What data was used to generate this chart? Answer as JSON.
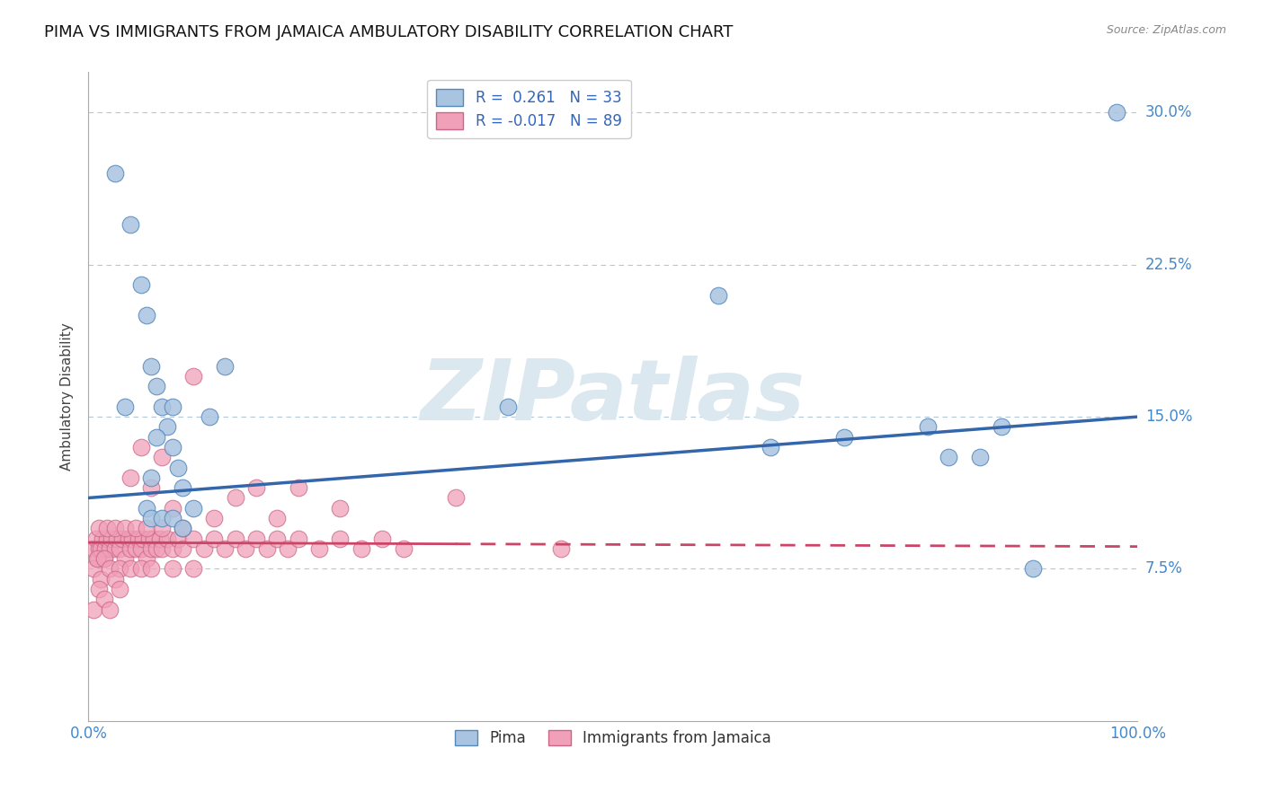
{
  "title": "PIMA VS IMMIGRANTS FROM JAMAICA AMBULATORY DISABILITY CORRELATION CHART",
  "source_text": "Source: ZipAtlas.com",
  "ylabel": "Ambulatory Disability",
  "xlim": [
    0.0,
    1.0
  ],
  "ylim": [
    0.0,
    0.32
  ],
  "yticks": [
    0.075,
    0.15,
    0.225,
    0.3
  ],
  "ytick_labels": [
    "7.5%",
    "15.0%",
    "22.5%",
    "30.0%"
  ],
  "pima_R": 0.261,
  "pima_N": 33,
  "jamaica_R": -0.017,
  "jamaica_N": 89,
  "pima_color": "#a8c4e0",
  "pima_edge_color": "#5588bb",
  "pima_line_color": "#3366aa",
  "jamaica_color": "#f0a0b8",
  "jamaica_edge_color": "#cc6688",
  "jamaica_line_color": "#cc4466",
  "background_color": "#ffffff",
  "grid_color": "#b0c8d8",
  "watermark_text": "ZIPatlas",
  "watermark_color": "#dce8f0",
  "title_fontsize": 13,
  "axis_label_fontsize": 11,
  "tick_fontsize": 12,
  "legend_fontsize": 12,
  "pima_x": [
    0.025,
    0.04,
    0.05,
    0.055,
    0.06,
    0.065,
    0.07,
    0.075,
    0.08,
    0.085,
    0.09,
    0.1,
    0.115,
    0.13,
    0.08,
    0.06,
    0.055,
    0.065,
    0.6,
    0.65,
    0.72,
    0.8,
    0.82,
    0.85,
    0.87,
    0.9,
    0.06,
    0.07,
    0.08,
    0.09,
    0.035,
    0.4,
    0.98
  ],
  "pima_y": [
    0.27,
    0.245,
    0.215,
    0.2,
    0.175,
    0.165,
    0.155,
    0.145,
    0.135,
    0.125,
    0.115,
    0.105,
    0.15,
    0.175,
    0.155,
    0.12,
    0.105,
    0.14,
    0.21,
    0.135,
    0.14,
    0.145,
    0.13,
    0.13,
    0.145,
    0.075,
    0.1,
    0.1,
    0.1,
    0.095,
    0.155,
    0.155,
    0.3
  ],
  "jamaica_x": [
    0.005,
    0.007,
    0.009,
    0.01,
    0.012,
    0.013,
    0.015,
    0.016,
    0.018,
    0.02,
    0.022,
    0.025,
    0.027,
    0.03,
    0.032,
    0.035,
    0.038,
    0.04,
    0.042,
    0.045,
    0.048,
    0.05,
    0.052,
    0.055,
    0.058,
    0.06,
    0.062,
    0.065,
    0.068,
    0.07,
    0.075,
    0.08,
    0.085,
    0.09,
    0.1,
    0.11,
    0.12,
    0.13,
    0.14,
    0.15,
    0.16,
    0.17,
    0.18,
    0.19,
    0.2,
    0.22,
    0.24,
    0.26,
    0.28,
    0.3,
    0.005,
    0.008,
    0.01,
    0.012,
    0.015,
    0.018,
    0.02,
    0.025,
    0.03,
    0.035,
    0.04,
    0.045,
    0.05,
    0.055,
    0.06,
    0.07,
    0.08,
    0.09,
    0.1,
    0.12,
    0.14,
    0.16,
    0.18,
    0.2,
    0.24,
    0.45,
    0.005,
    0.01,
    0.015,
    0.02,
    0.025,
    0.03,
    0.04,
    0.05,
    0.06,
    0.07,
    0.08,
    0.1,
    0.35
  ],
  "jamaica_y": [
    0.085,
    0.09,
    0.08,
    0.085,
    0.085,
    0.09,
    0.08,
    0.085,
    0.09,
    0.085,
    0.09,
    0.085,
    0.09,
    0.085,
    0.09,
    0.08,
    0.09,
    0.085,
    0.09,
    0.085,
    0.09,
    0.085,
    0.09,
    0.08,
    0.09,
    0.085,
    0.09,
    0.085,
    0.09,
    0.085,
    0.09,
    0.085,
    0.09,
    0.085,
    0.09,
    0.085,
    0.09,
    0.085,
    0.09,
    0.085,
    0.09,
    0.085,
    0.09,
    0.085,
    0.09,
    0.085,
    0.09,
    0.085,
    0.09,
    0.085,
    0.075,
    0.08,
    0.095,
    0.07,
    0.08,
    0.095,
    0.075,
    0.095,
    0.075,
    0.095,
    0.075,
    0.095,
    0.075,
    0.095,
    0.075,
    0.095,
    0.075,
    0.095,
    0.075,
    0.1,
    0.11,
    0.115,
    0.1,
    0.115,
    0.105,
    0.085,
    0.055,
    0.065,
    0.06,
    0.055,
    0.07,
    0.065,
    0.12,
    0.135,
    0.115,
    0.13,
    0.105,
    0.17,
    0.11
  ]
}
